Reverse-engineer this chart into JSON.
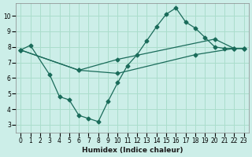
{
  "xlabel": "Humidex (Indice chaleur)",
  "bg_color": "#cceee8",
  "grid_color": "#aaddcc",
  "line_color": "#1a6b5a",
  "xlim": [
    -0.5,
    23.5
  ],
  "ylim": [
    2.5,
    10.8
  ],
  "xticks": [
    0,
    1,
    2,
    3,
    4,
    5,
    6,
    7,
    8,
    9,
    10,
    11,
    12,
    13,
    14,
    15,
    16,
    17,
    18,
    19,
    20,
    21,
    22,
    23
  ],
  "yticks": [
    3,
    4,
    5,
    6,
    7,
    8,
    9,
    10
  ],
  "series1_x": [
    0,
    1,
    3,
    4,
    5,
    6,
    7,
    8,
    9,
    10,
    11,
    12,
    13,
    14,
    15,
    16,
    17,
    18,
    19,
    20,
    21,
    22,
    23
  ],
  "series1_y": [
    7.8,
    8.1,
    6.2,
    4.8,
    4.6,
    3.6,
    3.4,
    3.2,
    4.5,
    5.7,
    6.8,
    7.5,
    8.4,
    9.3,
    10.1,
    10.5,
    9.6,
    9.2,
    8.6,
    8.0,
    7.9,
    7.9,
    7.9
  ],
  "series2_x": [
    0,
    6,
    10,
    18,
    22,
    23
  ],
  "series2_y": [
    7.8,
    6.5,
    6.3,
    7.5,
    7.9,
    7.9
  ],
  "series3_x": [
    0,
    6,
    10,
    20,
    22,
    23
  ],
  "series3_y": [
    7.8,
    6.5,
    7.2,
    8.5,
    7.9,
    7.9
  ]
}
